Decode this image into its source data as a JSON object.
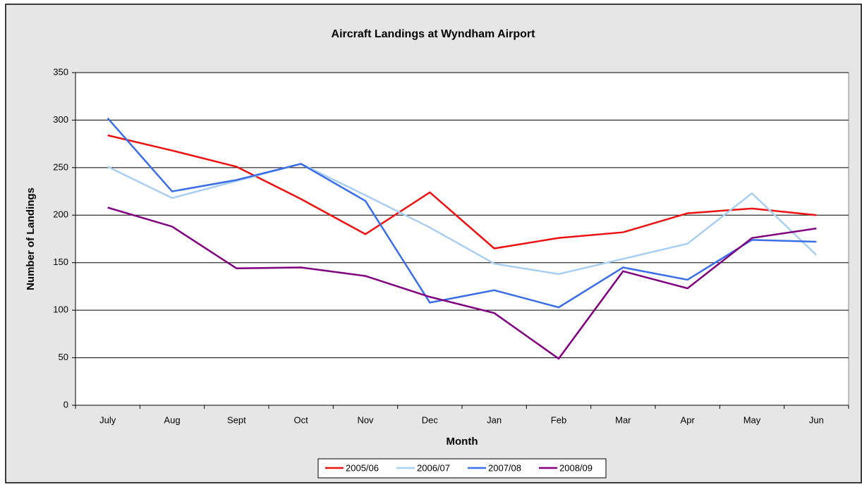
{
  "chart_data": {
    "type": "line",
    "title": "Aircraft Landings at Wyndham Airport",
    "x_label": "Month",
    "y_label": "Number of Landings",
    "categories": [
      "July",
      "Aug",
      "Sept",
      "Oct",
      "Nov",
      "Dec",
      "Jan",
      "Feb",
      "Mar",
      "Apr",
      "May",
      "Jun"
    ],
    "series": [
      {
        "name": "2005/06",
        "color": "#ee1111",
        "values": [
          284,
          268,
          251,
          217,
          180,
          224,
          165,
          176,
          182,
          202,
          207,
          200
        ]
      },
      {
        "name": "2006/07",
        "color": "#a8cff2",
        "values": [
          251,
          218,
          236,
          254,
          221,
          187,
          149,
          138,
          154,
          170,
          223,
          158
        ]
      },
      {
        "name": "2007/08",
        "color": "#3a6ee8",
        "values": [
          302,
          225,
          237,
          254,
          215,
          108,
          121,
          103,
          145,
          132,
          174,
          172
        ]
      },
      {
        "name": "2008/09",
        "color": "#800080",
        "values": [
          208,
          188,
          144,
          145,
          136,
          114,
          97,
          49,
          141,
          123,
          176,
          186
        ]
      }
    ],
    "ylim": [
      0,
      350
    ],
    "yticks": [
      0,
      50,
      100,
      150,
      200,
      250,
      300,
      350
    ],
    "grid": true,
    "legend": "bottom"
  }
}
